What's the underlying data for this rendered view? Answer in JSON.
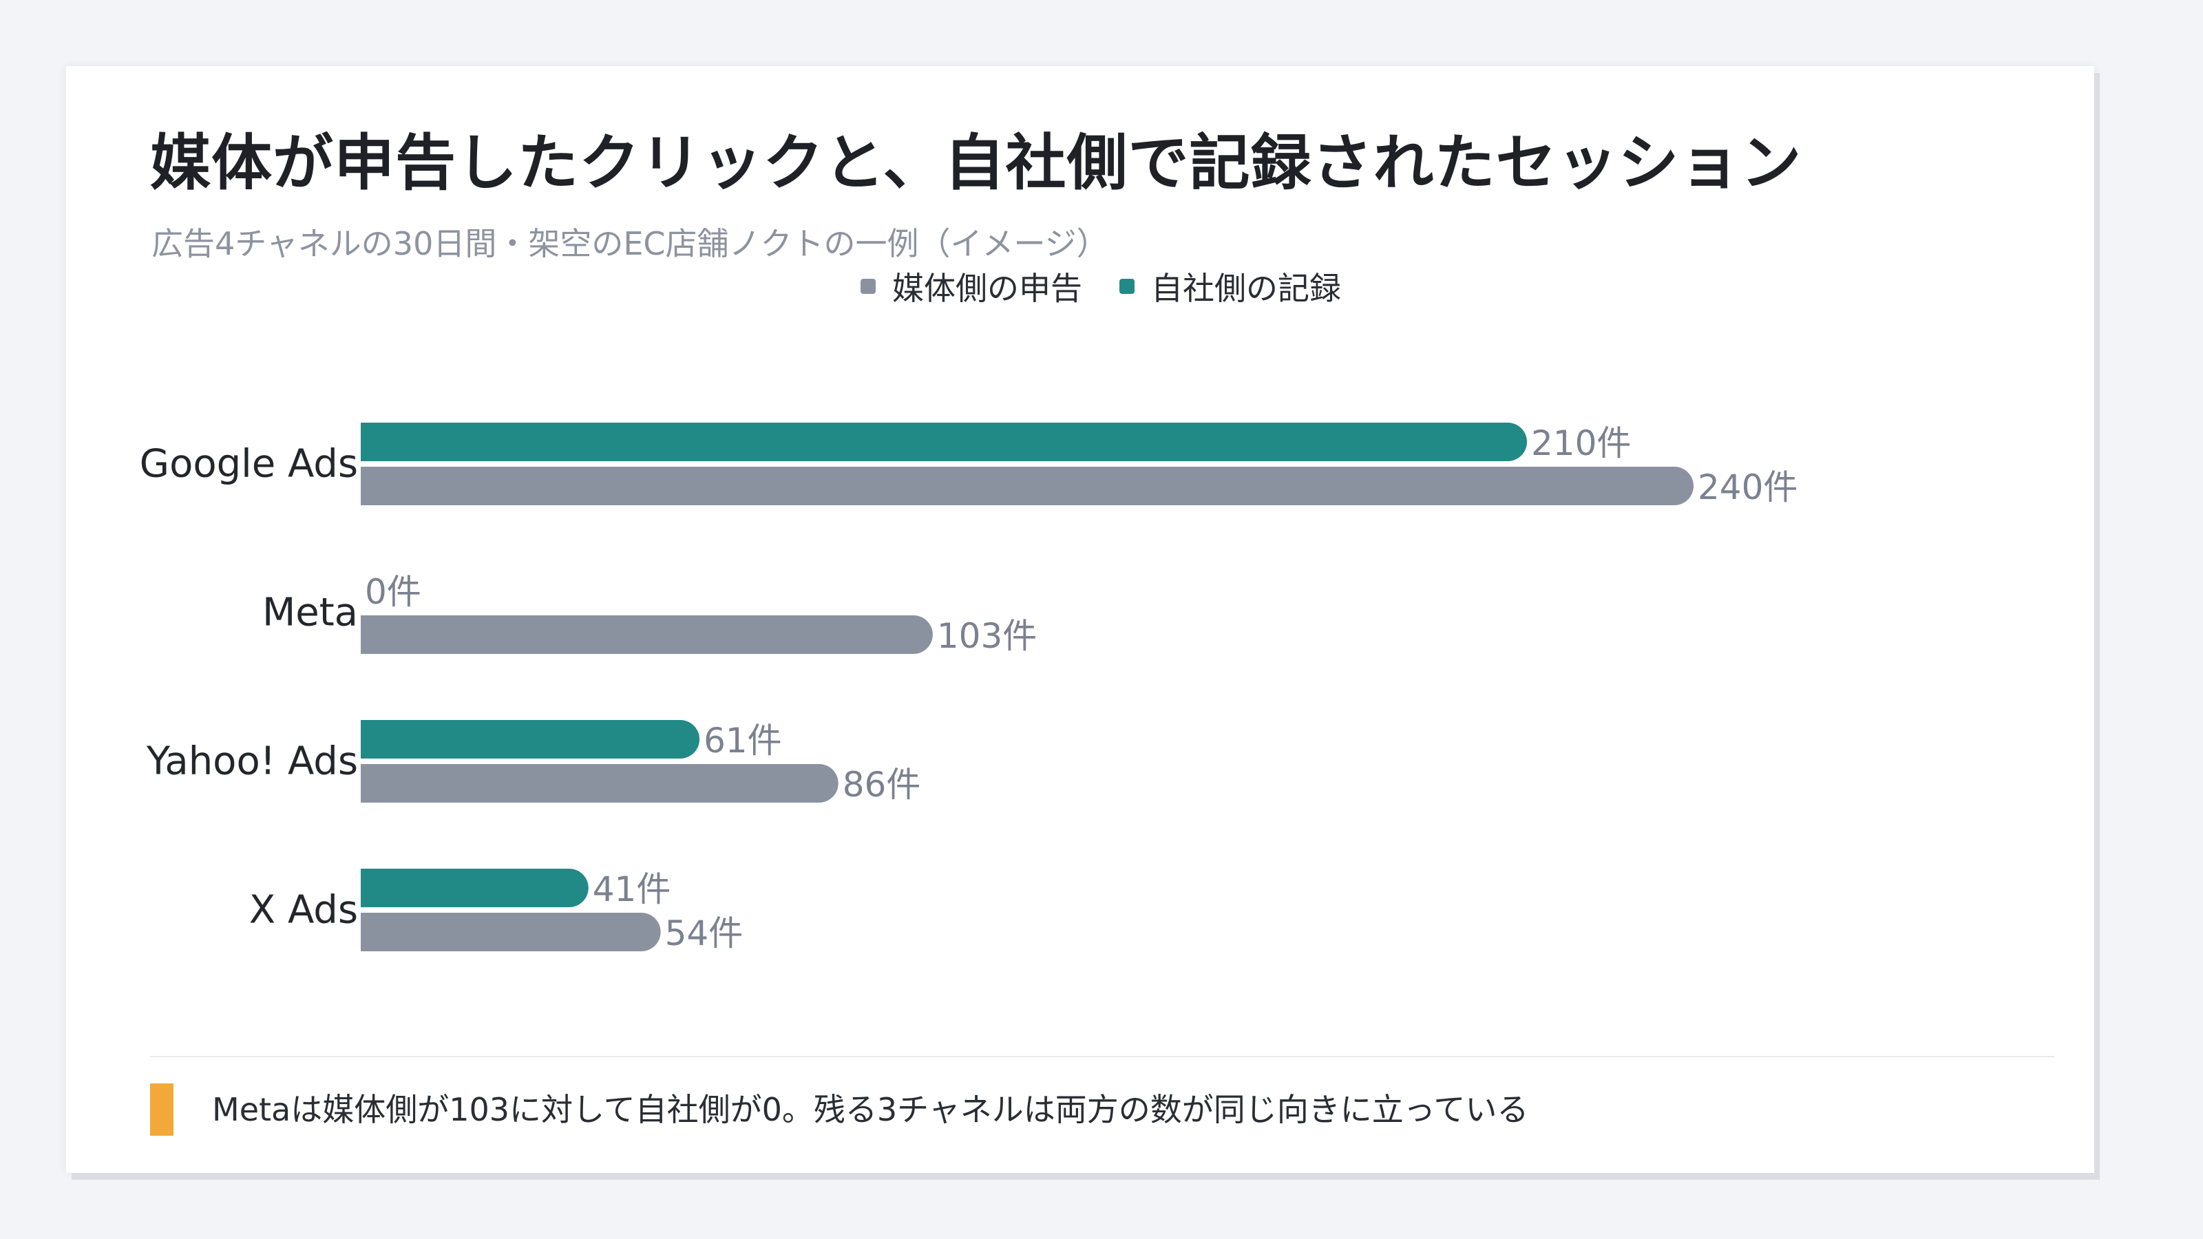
{
  "title": "媒体が申告したクリックと、自社側で記録されたセッション",
  "subtitle": "広告4チャネルの30日間・架空のEC店舗ノクトの一例（イメージ）",
  "legend": {
    "reported": "媒体側の申告",
    "recorded": "自社側の記録"
  },
  "colors": {
    "reported": "#8a92a0",
    "recorded": "#218a87",
    "note_marker": "#f3a83a",
    "value_label": "#7b8190",
    "category_label": "#23262b"
  },
  "note": "Metaは媒体側が103に対して自社側が0。残る3チャネルは両方の数が同じ向きに立っている",
  "chart_data": {
    "type": "bar",
    "orientation": "horizontal",
    "title": "媒体が申告したクリックと、自社側で記録されたセッション",
    "subtitle": "広告4チャネルの30日間・架空のEC店舗ノクトの一例（イメージ）",
    "categories": [
      "Google Ads",
      "Meta",
      "Yahoo! Ads",
      "X Ads"
    ],
    "series": [
      {
        "key": "recorded",
        "name": "自社側の記録",
        "values": [
          210,
          0,
          61,
          41
        ],
        "labels": [
          "210件",
          "0件",
          "61件",
          "41件"
        ]
      },
      {
        "key": "reported",
        "name": "媒体側の申告",
        "values": [
          240,
          103,
          86,
          54
        ],
        "labels": [
          "240件",
          "103件",
          "86件",
          "54件"
        ]
      }
    ],
    "value_unit": "件",
    "xlim": [
      0,
      240
    ],
    "grid": false,
    "legend_position": "top-center"
  }
}
